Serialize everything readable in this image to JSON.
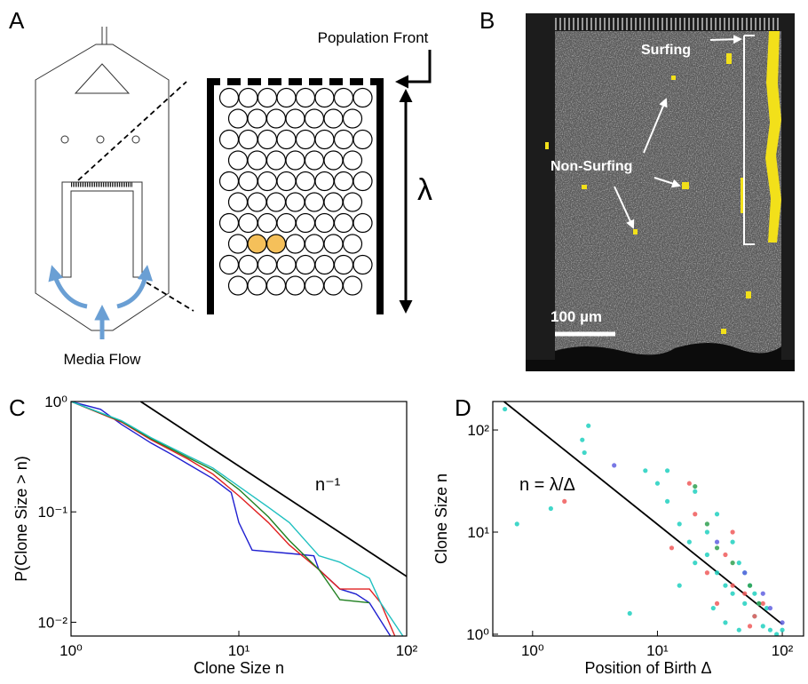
{
  "panel_labels": [
    "A",
    "B",
    "C",
    "D"
  ],
  "diagram": {
    "population_front": "Population Front",
    "lambda": "λ",
    "media_flow": "Media Flow"
  },
  "micrograph": {
    "surfing": "Surfing",
    "non_surfing": "Non-Surfing",
    "scale_bar": "100 µm"
  },
  "chart_data": [
    {
      "type": "line",
      "xscale": "log",
      "yscale": "log",
      "xlabel": "Clone Size n",
      "ylabel": "P(Clone Size > n)",
      "xlim": [
        1,
        100
      ],
      "ylim": [
        0.0075,
        1
      ],
      "xticks": [
        {
          "value": 1,
          "label": "10⁰"
        },
        {
          "value": 10,
          "label": "10¹"
        },
        {
          "value": 100,
          "label": "10²"
        }
      ],
      "yticks": [
        {
          "value": 1,
          "label": "10⁰"
        },
        {
          "value": 0.1,
          "label": "10⁻¹"
        },
        {
          "value": 0.01,
          "label": "10⁻²"
        }
      ],
      "annotation": "n⁻¹",
      "reference": {
        "color": "#000000",
        "x": [
          2.6,
          100
        ],
        "values": [
          1,
          0.026
        ]
      },
      "series": [
        {
          "color": "#1f1fd0",
          "x": [
            1,
            1.5,
            2,
            3,
            4,
            5,
            7,
            9,
            10,
            12,
            20,
            28,
            30,
            40,
            50,
            60,
            80
          ],
          "values": [
            1,
            0.85,
            0.62,
            0.42,
            0.33,
            0.27,
            0.2,
            0.15,
            0.08,
            0.045,
            0.042,
            0.04,
            0.03,
            0.02,
            0.018,
            0.015,
            0.0075
          ]
        },
        {
          "color": "#e02020",
          "x": [
            1,
            2,
            3,
            5,
            7,
            10,
            15,
            20,
            30,
            40,
            60,
            70,
            85
          ],
          "values": [
            1,
            0.65,
            0.45,
            0.3,
            0.22,
            0.14,
            0.08,
            0.05,
            0.03,
            0.02,
            0.02,
            0.015,
            0.0075
          ]
        },
        {
          "color": "#208020",
          "x": [
            1,
            2,
            3,
            5,
            7,
            10,
            15,
            20,
            30,
            40,
            60
          ],
          "values": [
            1,
            0.66,
            0.46,
            0.31,
            0.24,
            0.16,
            0.09,
            0.055,
            0.03,
            0.016,
            0.015
          ]
        },
        {
          "color": "#20c0c0",
          "x": [
            1,
            2,
            3,
            5,
            7,
            10,
            15,
            20,
            30,
            40,
            60,
            70,
            95
          ],
          "values": [
            1,
            0.67,
            0.47,
            0.32,
            0.25,
            0.17,
            0.11,
            0.08,
            0.04,
            0.035,
            0.025,
            0.015,
            0.0075
          ]
        }
      ]
    },
    {
      "type": "scatter",
      "xscale": "log",
      "yscale": "log",
      "xlabel": "Position of Birth Δ",
      "ylabel": "Clone Size n",
      "xlim": [
        0.48,
        148
      ],
      "ylim": [
        0.96,
        190
      ],
      "xticks": [
        {
          "value": 1,
          "label": "10⁰"
        },
        {
          "value": 10,
          "label": "10¹"
        },
        {
          "value": 100,
          "label": "10²"
        }
      ],
      "yticks": [
        {
          "value": 1,
          "label": "10⁰"
        },
        {
          "value": 10,
          "label": "10¹"
        },
        {
          "value": 100,
          "label": "10²"
        }
      ],
      "annotation": "n = λ/Δ",
      "reference": {
        "color": "#000000",
        "x": [
          0.59,
          100
        ],
        "values": [
          190,
          1.25
        ]
      },
      "series": [
        {
          "color": "#20d0c0",
          "x": [
            0.6,
            0.75,
            1.4,
            2.5,
            2.8,
            2.6,
            6,
            8,
            10,
            12,
            15,
            18,
            20,
            25,
            30,
            35,
            40,
            50,
            60,
            70,
            80,
            90,
            20,
            30,
            45,
            55,
            65,
            75,
            100,
            12,
            25,
            40,
            50,
            60,
            35,
            28,
            15,
            45
          ],
          "values": [
            160,
            12,
            17,
            80,
            110,
            60,
            1.6,
            40,
            30,
            20,
            12,
            8,
            5,
            6,
            4,
            3,
            2.5,
            2,
            1.5,
            1.2,
            1.1,
            1,
            25,
            15,
            5,
            3,
            2,
            1.8,
            1.1,
            40,
            10,
            8,
            4,
            2.5,
            1.3,
            1.8,
            3,
            1.1
          ]
        },
        {
          "color": "#f05a5a",
          "x": [
            1.8,
            13,
            18,
            20,
            25,
            35,
            40,
            50,
            60,
            70,
            40,
            30,
            55
          ],
          "values": [
            20,
            7,
            30,
            15,
            4,
            6,
            3,
            2.5,
            1.5,
            2,
            10,
            2,
            1.2
          ]
        },
        {
          "color": "#30a050",
          "x": [
            20,
            25,
            40,
            55,
            65,
            30
          ],
          "values": [
            28,
            12,
            5,
            3,
            2,
            7
          ]
        },
        {
          "color": "#6060e0",
          "x": [
            4.5,
            30,
            50,
            70,
            80,
            100
          ],
          "values": [
            45,
            8,
            4,
            2.5,
            1.8,
            1.3
          ]
        }
      ]
    }
  ]
}
